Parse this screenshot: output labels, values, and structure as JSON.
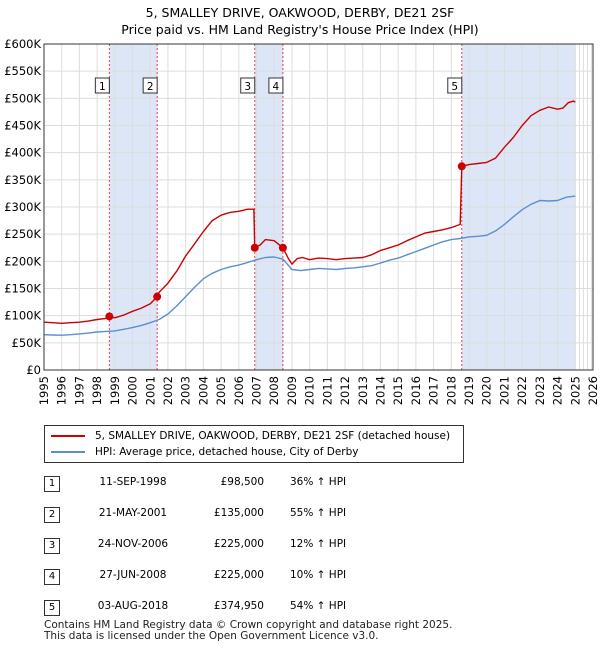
{
  "title_line1": "5, SMALLEY DRIVE, OAKWOOD, DERBY, DE21 2SF",
  "title_line2": "Price paid vs. HM Land Registry's House Price Index (HPI)",
  "colors": {
    "property": "#cc0000",
    "hpi": "#5b8fcf",
    "shade": "#dde6f7",
    "grid": "#dddddd",
    "vline": "#dd4444"
  },
  "legend": {
    "property_label": "5, SMALLEY DRIVE, OAKWOOD, DERBY, DE21 2SF (detached house)",
    "hpi_label": "HPI: Average price, detached house, City of Derby"
  },
  "sales": [
    {
      "num": "1",
      "date": "11-SEP-1998",
      "price": "£98,500",
      "hpi": "36% ↑ HPI"
    },
    {
      "num": "2",
      "date": "21-MAY-2001",
      "price": "£135,000",
      "hpi": "55% ↑ HPI"
    },
    {
      "num": "3",
      "date": "24-NOV-2006",
      "price": "£225,000",
      "hpi": "12% ↑ HPI"
    },
    {
      "num": "4",
      "date": "27-JUN-2008",
      "price": "£225,000",
      "hpi": "10% ↑ HPI"
    },
    {
      "num": "5",
      "date": "03-AUG-2018",
      "price": "£374,950",
      "hpi": "54% ↑ HPI"
    }
  ],
  "footer_line1": "Contains HM Land Registry data © Crown copyright and database right 2025.",
  "footer_line2": "This data is licensed under the Open Government Licence v3.0.",
  "chart_data": {
    "type": "line",
    "title": "5, SMALLEY DRIVE, OAKWOOD, DERBY, DE21 2SF — Price paid vs. HM Land Registry's House Price Index (HPI)",
    "xlim": [
      1995,
      2026
    ],
    "ylim": [
      0,
      600000
    ],
    "x_ticks": [
      1995,
      1996,
      1997,
      1998,
      1999,
      2000,
      2001,
      2002,
      2003,
      2004,
      2005,
      2006,
      2007,
      2008,
      2009,
      2010,
      2011,
      2012,
      2013,
      2014,
      2015,
      2016,
      2017,
      2018,
      2019,
      2020,
      2021,
      2022,
      2023,
      2024,
      2025,
      2026
    ],
    "y_ticks": [
      {
        "value": 0,
        "label": "£0"
      },
      {
        "value": 50000,
        "label": "£50K"
      },
      {
        "value": 100000,
        "label": "£100K"
      },
      {
        "value": 150000,
        "label": "£150K"
      },
      {
        "value": 200000,
        "label": "£200K"
      },
      {
        "value": 250000,
        "label": "£250K"
      },
      {
        "value": 300000,
        "label": "£300K"
      },
      {
        "value": 350000,
        "label": "£350K"
      },
      {
        "value": 400000,
        "label": "£400K"
      },
      {
        "value": 450000,
        "label": "£450K"
      },
      {
        "value": 500000,
        "label": "£500K"
      },
      {
        "value": 550000,
        "label": "£550K"
      },
      {
        "value": 600000,
        "label": "£600K"
      }
    ],
    "shaded_ranges": [
      [
        1998.7,
        2001.4
      ],
      [
        2006.9,
        2008.5
      ],
      [
        2018.6,
        2025.0
      ]
    ],
    "forecast_start": 2025.0,
    "markers": [
      {
        "label": "1",
        "x": 1998.69,
        "y": 98500
      },
      {
        "label": "2",
        "x": 2001.39,
        "y": 135000
      },
      {
        "label": "3",
        "x": 2006.9,
        "y": 225000
      },
      {
        "label": "4",
        "x": 2008.49,
        "y": 225000
      },
      {
        "label": "5",
        "x": 2018.59,
        "y": 374950
      }
    ],
    "series": [
      {
        "name": "5, SMALLEY DRIVE, OAKWOOD, DERBY, DE21 2SF (detached house)",
        "color": "#cc0000",
        "x": [
          1995.0,
          1995.5,
          1996.0,
          1996.5,
          1997.0,
          1997.5,
          1998.0,
          1998.5,
          1998.69,
          1999.0,
          1999.5,
          2000.0,
          2000.5,
          2001.0,
          2001.39,
          2001.5,
          2002.0,
          2002.5,
          2003.0,
          2003.5,
          2004.0,
          2004.5,
          2005.0,
          2005.5,
          2006.0,
          2006.5,
          2006.85,
          2006.9,
          2007.2,
          2007.5,
          2008.0,
          2008.49,
          2008.8,
          2009.0,
          2009.3,
          2009.6,
          2010.0,
          2010.5,
          2011.0,
          2011.5,
          2012.0,
          2012.5,
          2013.0,
          2013.5,
          2014.0,
          2014.5,
          2015.0,
          2015.5,
          2016.0,
          2016.5,
          2017.0,
          2017.5,
          2018.0,
          2018.5,
          2018.59,
          2019.0,
          2019.5,
          2020.0,
          2020.5,
          2021.0,
          2021.5,
          2022.0,
          2022.5,
          2023.0,
          2023.5,
          2024.0,
          2024.3,
          2024.6,
          2024.9,
          2025.0
        ],
        "values": [
          88000,
          87000,
          86000,
          87000,
          88000,
          90000,
          93000,
          95000,
          98500,
          96000,
          101000,
          108000,
          114000,
          122000,
          135000,
          143000,
          160000,
          182000,
          210000,
          232000,
          255000,
          275000,
          285000,
          290000,
          292000,
          296000,
          296000,
          225000,
          230000,
          240000,
          238000,
          225000,
          205000,
          195000,
          205000,
          207000,
          203000,
          206000,
          205000,
          203000,
          205000,
          206000,
          207000,
          212000,
          220000,
          225000,
          230000,
          238000,
          245000,
          252000,
          255000,
          258000,
          262000,
          268000,
          374950,
          378000,
          380000,
          382000,
          390000,
          410000,
          428000,
          450000,
          468000,
          478000,
          484000,
          480000,
          482000,
          492000,
          495000,
          493000
        ]
      },
      {
        "name": "HPI: Average price, detached house, City of Derby",
        "color": "#5b8fcf",
        "x": [
          1995.0,
          1995.5,
          1996.0,
          1996.5,
          1997.0,
          1997.5,
          1998.0,
          1998.5,
          1999.0,
          1999.5,
          2000.0,
          2000.5,
          2001.0,
          2001.5,
          2002.0,
          2002.5,
          2003.0,
          2003.5,
          2004.0,
          2004.5,
          2005.0,
          2005.5,
          2006.0,
          2006.5,
          2007.0,
          2007.5,
          2008.0,
          2008.5,
          2009.0,
          2009.5,
          2010.0,
          2010.5,
          2011.0,
          2011.5,
          2012.0,
          2012.5,
          2013.0,
          2013.5,
          2014.0,
          2014.5,
          2015.0,
          2015.5,
          2016.0,
          2016.5,
          2017.0,
          2017.5,
          2018.0,
          2018.5,
          2019.0,
          2019.5,
          2020.0,
          2020.5,
          2021.0,
          2021.5,
          2022.0,
          2022.5,
          2023.0,
          2023.5,
          2024.0,
          2024.5,
          2025.0
        ],
        "values": [
          65000,
          64500,
          64000,
          65000,
          66500,
          68000,
          70000,
          71000,
          72000,
          75000,
          78000,
          82000,
          87000,
          93000,
          103000,
          118000,
          135000,
          152000,
          168000,
          178000,
          185000,
          190000,
          193000,
          198000,
          203000,
          207000,
          208000,
          204000,
          185000,
          183000,
          185000,
          187000,
          186000,
          185000,
          187000,
          188000,
          190000,
          192000,
          197000,
          202000,
          206000,
          212000,
          218000,
          224000,
          230000,
          236000,
          240000,
          242000,
          245000,
          246000,
          248000,
          256000,
          268000,
          282000,
          295000,
          305000,
          312000,
          311000,
          312000,
          318000,
          320000
        ]
      }
    ]
  }
}
